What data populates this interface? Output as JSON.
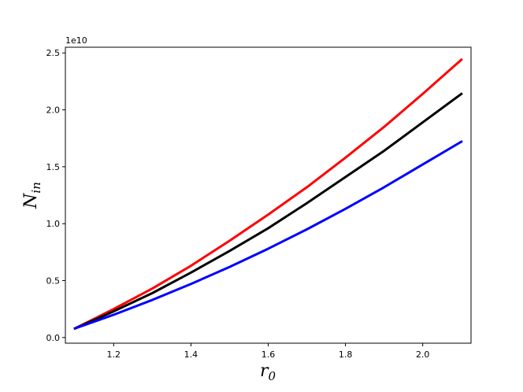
{
  "chart_data": {
    "type": "line",
    "title": "",
    "xlabel": "r",
    "xlabel_sub": "0",
    "ylabel": "N",
    "ylabel_sub": "in",
    "y_offset_label": "1e10",
    "xlim": [
      1.075,
      2.125
    ],
    "ylim": [
      -0.05,
      2.55
    ],
    "y_scale": 10000000000.0,
    "x_ticks": [
      1.2,
      1.4,
      1.6,
      1.8,
      2.0
    ],
    "x_tick_labels": [
      "1.2",
      "1.4",
      "1.6",
      "1.8",
      "2.0"
    ],
    "y_ticks": [
      0.0,
      0.5,
      1.0,
      1.5,
      2.0,
      2.5
    ],
    "y_tick_labels": [
      "0.0",
      "0.5",
      "1.0",
      "1.5",
      "2.0",
      "2.5"
    ],
    "grid": false,
    "legend": "none",
    "x": [
      1.1,
      1.2,
      1.3,
      1.4,
      1.5,
      1.6,
      1.7,
      1.8,
      1.9,
      2.0,
      2.1
    ],
    "series": [
      {
        "color": "#ff0000",
        "values": [
          0.08,
          0.25,
          0.43,
          0.63,
          0.85,
          1.08,
          1.32,
          1.58,
          1.85,
          2.14,
          2.44
        ]
      },
      {
        "color": "#000000",
        "values": [
          0.08,
          0.23,
          0.39,
          0.57,
          0.76,
          0.96,
          1.18,
          1.41,
          1.64,
          1.89,
          2.14
        ]
      },
      {
        "color": "#0000ff",
        "values": [
          0.08,
          0.2,
          0.33,
          0.47,
          0.62,
          0.78,
          0.95,
          1.13,
          1.32,
          1.52,
          1.72
        ]
      }
    ]
  }
}
